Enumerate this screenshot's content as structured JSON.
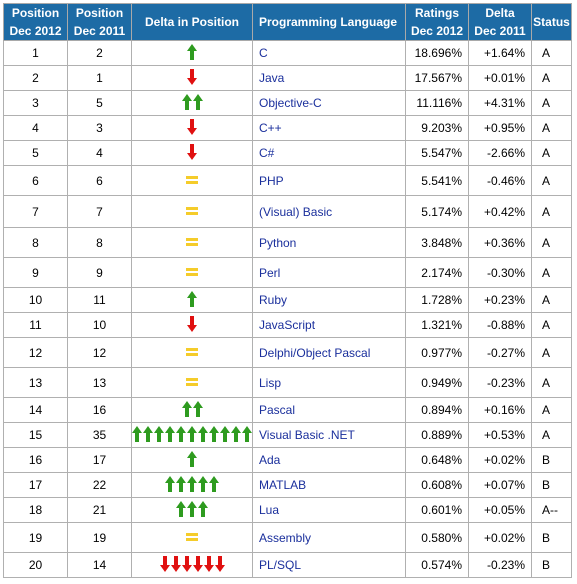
{
  "headers": {
    "pos2012": [
      "Position",
      "Dec 2012"
    ],
    "pos2011": [
      "Position",
      "Dec 2011"
    ],
    "delta_pos": "Delta in Position",
    "language": "Programming Language",
    "ratings": [
      "Ratings",
      "Dec 2012"
    ],
    "delta": [
      "Delta",
      "Dec 2011"
    ],
    "status": "Status"
  },
  "colors": {
    "header_bg": "#1d6ba5",
    "up": "#2e9b1f",
    "down": "#e01010",
    "same": "#f5cc2a",
    "link": "#1a2f9c"
  },
  "rows": [
    {
      "p2012": "1",
      "p2011": "2",
      "arrow": "up",
      "count": 1,
      "lang": "C",
      "rating": "18.696%",
      "delta": "+1.64%",
      "status": "A"
    },
    {
      "p2012": "2",
      "p2011": "1",
      "arrow": "down",
      "count": 1,
      "lang": "Java",
      "rating": "17.567%",
      "delta": "+0.01%",
      "status": "A"
    },
    {
      "p2012": "3",
      "p2011": "5",
      "arrow": "up",
      "count": 2,
      "lang": "Objective-C",
      "rating": "11.116%",
      "delta": "+4.31%",
      "status": "A"
    },
    {
      "p2012": "4",
      "p2011": "3",
      "arrow": "down",
      "count": 1,
      "lang": "C++",
      "rating": "9.203%",
      "delta": "+0.95%",
      "status": "A"
    },
    {
      "p2012": "5",
      "p2011": "4",
      "arrow": "down",
      "count": 1,
      "lang": "C#",
      "rating": "5.547%",
      "delta": "-2.66%",
      "status": "A"
    },
    {
      "p2012": "6",
      "p2011": "6",
      "arrow": "same",
      "count": 1,
      "lang": "PHP",
      "rating": "5.541%",
      "delta": "-0.46%",
      "status": "A"
    },
    {
      "p2012": "7",
      "p2011": "7",
      "arrow": "same",
      "count": 1,
      "lang": "(Visual) Basic",
      "rating": "5.174%",
      "delta": "+0.42%",
      "status": "A"
    },
    {
      "p2012": "8",
      "p2011": "8",
      "arrow": "same",
      "count": 1,
      "lang": "Python",
      "rating": "3.848%",
      "delta": "+0.36%",
      "status": "A"
    },
    {
      "p2012": "9",
      "p2011": "9",
      "arrow": "same",
      "count": 1,
      "lang": "Perl",
      "rating": "2.174%",
      "delta": "-0.30%",
      "status": "A"
    },
    {
      "p2012": "10",
      "p2011": "11",
      "arrow": "up",
      "count": 1,
      "lang": "Ruby",
      "rating": "1.728%",
      "delta": "+0.23%",
      "status": "A"
    },
    {
      "p2012": "11",
      "p2011": "10",
      "arrow": "down",
      "count": 1,
      "lang": "JavaScript",
      "rating": "1.321%",
      "delta": "-0.88%",
      "status": "A"
    },
    {
      "p2012": "12",
      "p2011": "12",
      "arrow": "same",
      "count": 1,
      "lang": "Delphi/Object Pascal",
      "rating": "0.977%",
      "delta": "-0.27%",
      "status": "A"
    },
    {
      "p2012": "13",
      "p2011": "13",
      "arrow": "same",
      "count": 1,
      "lang": "Lisp",
      "rating": "0.949%",
      "delta": "-0.23%",
      "status": "A"
    },
    {
      "p2012": "14",
      "p2011": "16",
      "arrow": "up",
      "count": 2,
      "lang": "Pascal",
      "rating": "0.894%",
      "delta": "+0.16%",
      "status": "A"
    },
    {
      "p2012": "15",
      "p2011": "35",
      "arrow": "up",
      "count": 11,
      "lang": "Visual Basic .NET",
      "rating": "0.889%",
      "delta": "+0.53%",
      "status": "A"
    },
    {
      "p2012": "16",
      "p2011": "17",
      "arrow": "up",
      "count": 1,
      "lang": "Ada",
      "rating": "0.648%",
      "delta": "+0.02%",
      "status": "B"
    },
    {
      "p2012": "17",
      "p2011": "22",
      "arrow": "up",
      "count": 5,
      "lang": "MATLAB",
      "rating": "0.608%",
      "delta": "+0.07%",
      "status": "B"
    },
    {
      "p2012": "18",
      "p2011": "21",
      "arrow": "up",
      "count": 3,
      "lang": "Lua",
      "rating": "0.601%",
      "delta": "+0.05%",
      "status": "A--"
    },
    {
      "p2012": "19",
      "p2011": "19",
      "arrow": "same",
      "count": 1,
      "lang": "Assembly",
      "rating": "0.580%",
      "delta": "+0.02%",
      "status": "B"
    },
    {
      "p2012": "20",
      "p2011": "14",
      "arrow": "down",
      "count": 6,
      "lang": "PL/SQL",
      "rating": "0.574%",
      "delta": "-0.23%",
      "status": "B"
    }
  ]
}
